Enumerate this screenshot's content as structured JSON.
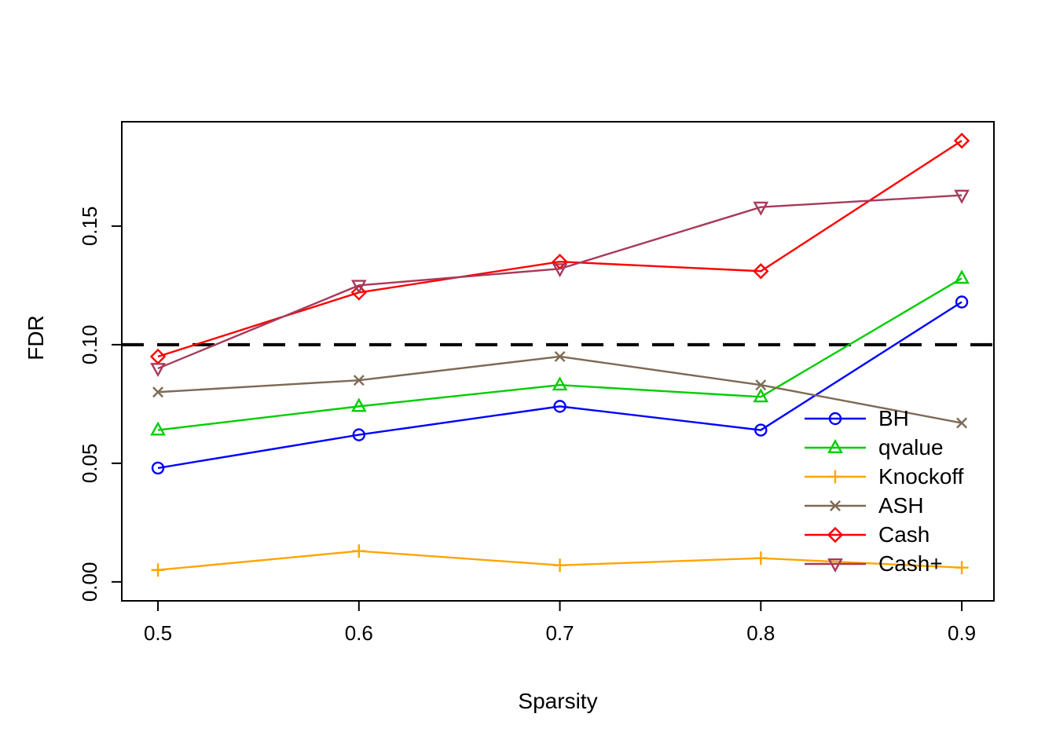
{
  "figure": {
    "background": "#ffffff",
    "text_color": "#000000"
  },
  "chart_data": {
    "type": "line",
    "title": "",
    "xlabel": "Sparsity",
    "ylabel": "FDR",
    "x": [
      0.5,
      0.6,
      0.7,
      0.8,
      0.9
    ],
    "xtick_labels": [
      "0.5",
      "0.6",
      "0.7",
      "0.8",
      "0.9"
    ],
    "ytick_values": [
      0.0,
      0.05,
      0.1,
      0.15
    ],
    "ytick_labels": [
      "0.00",
      "0.05",
      "0.10",
      "0.15"
    ],
    "xlim": [
      0.482,
      0.916
    ],
    "ylim": [
      -0.008,
      0.194
    ],
    "grid": false,
    "legend_position": "bottom-right",
    "legend_box": false,
    "reference_line": {
      "y": 0.1,
      "style": "dashed",
      "color": "#000000"
    },
    "series": [
      {
        "name": "BH",
        "color": "#0000ff",
        "marker": "circle",
        "values": [
          0.048,
          0.062,
          0.074,
          0.064,
          0.118
        ]
      },
      {
        "name": "qvalue",
        "color": "#00cd00",
        "marker": "triangle-up",
        "values": [
          0.064,
          0.074,
          0.083,
          0.078,
          0.128
        ]
      },
      {
        "name": "Knockoff",
        "color": "#ffa500",
        "marker": "plus",
        "values": [
          0.005,
          0.013,
          0.007,
          0.01,
          0.006
        ]
      },
      {
        "name": "ASH",
        "color": "#7d6a55",
        "marker": "x",
        "values": [
          0.08,
          0.085,
          0.095,
          0.083,
          0.067
        ]
      },
      {
        "name": "Cash",
        "color": "#ff0000",
        "marker": "diamond",
        "values": [
          0.095,
          0.122,
          0.135,
          0.131,
          0.186
        ]
      },
      {
        "name": "Cash+",
        "color": "#a63a5a",
        "marker": "triangle-down",
        "values": [
          0.09,
          0.125,
          0.132,
          0.158,
          0.163
        ]
      }
    ]
  }
}
